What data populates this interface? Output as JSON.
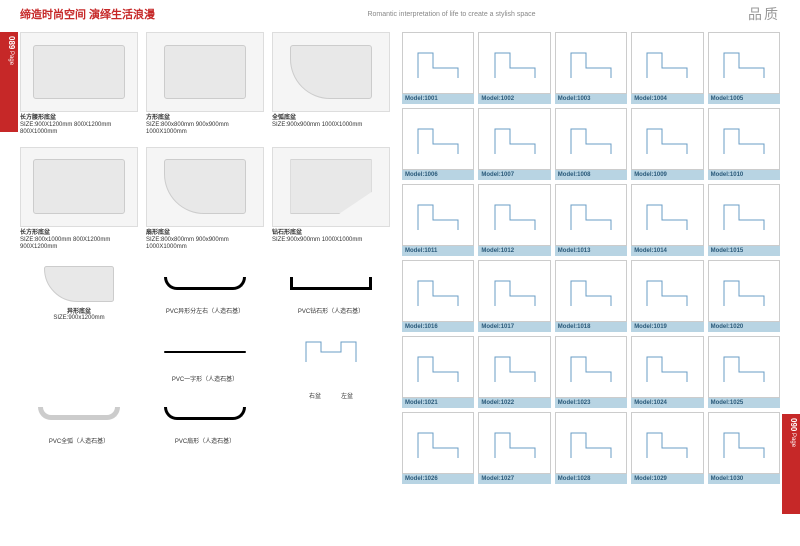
{
  "header": {
    "tagline_cn": "缔造时尚空间 演绎生活浪漫",
    "tagline_en": "Romantic interpretation of life to create a stylish space",
    "brand": "品质"
  },
  "page_left": {
    "num": "089",
    "label": "Page"
  },
  "page_right": {
    "num": "090",
    "label": "Page"
  },
  "trays_row1": [
    {
      "name": "长方腰形底盆",
      "size": "SIZE:900X1200mm 800X1200mm 800X1000mm"
    },
    {
      "name": "方形底盆",
      "size": "SIZE:800x800mm 900x900mm 1000X1000mm"
    },
    {
      "name": "全弧底盆",
      "size": "SIZE:900x900mm 1000X1000mm"
    }
  ],
  "trays_row2": [
    {
      "name": "长方形底盆",
      "size": "SIZE:800x1000mm 800X1200mm 900X1200mm"
    },
    {
      "name": "扇形底盆",
      "size": "SIZE:800x800mm 900x900mm 1000X1000mm"
    },
    {
      "name": "钻石形底盆",
      "size": "SIZE:900x900mm 1000X1000mm"
    }
  ],
  "accessories_row1": [
    {
      "name": "异形底盆",
      "size": "SIZE:900x1200mm"
    },
    {
      "name": "PVC异形分左右（人造石基）",
      "size": ""
    },
    {
      "name": "PVC钻石形（人造石基）",
      "size": ""
    }
  ],
  "accessories_row2": [
    {
      "name": "",
      "size": ""
    },
    {
      "name": "PVC一字形（人造石基）",
      "size": ""
    },
    {
      "name": "",
      "size": ""
    }
  ],
  "accessories_row3": [
    {
      "name": "PVC全弧（人造石基）",
      "size": ""
    },
    {
      "name": "PVC扇形（人造石基）",
      "size": ""
    },
    {
      "name_left": "右盆",
      "name_right": "左盆"
    }
  ],
  "profiles": [
    [
      "Model:1001",
      "Model:1002",
      "Model:1003",
      "Model:1004",
      "Model:1005"
    ],
    [
      "Model:1006",
      "Model:1007",
      "Model:1008",
      "Model:1009",
      "Model:1010"
    ],
    [
      "Model:1011",
      "Model:1012",
      "Model:1013",
      "Model:1014",
      "Model:1015"
    ],
    [
      "Model:1016",
      "Model:1017",
      "Model:1018",
      "Model:1019",
      "Model:1020"
    ],
    [
      "Model:1021",
      "Model:1022",
      "Model:1023",
      "Model:1024",
      "Model:1025"
    ],
    [
      "Model:1026",
      "Model:1027",
      "Model:1028",
      "Model:1029",
      "Model:1030"
    ]
  ],
  "colors": {
    "accent": "#c62828",
    "profile_label_bg": "#b8d4e3",
    "profile_label_text": "#2a5a7a",
    "profile_line": "#6a9cc5"
  }
}
